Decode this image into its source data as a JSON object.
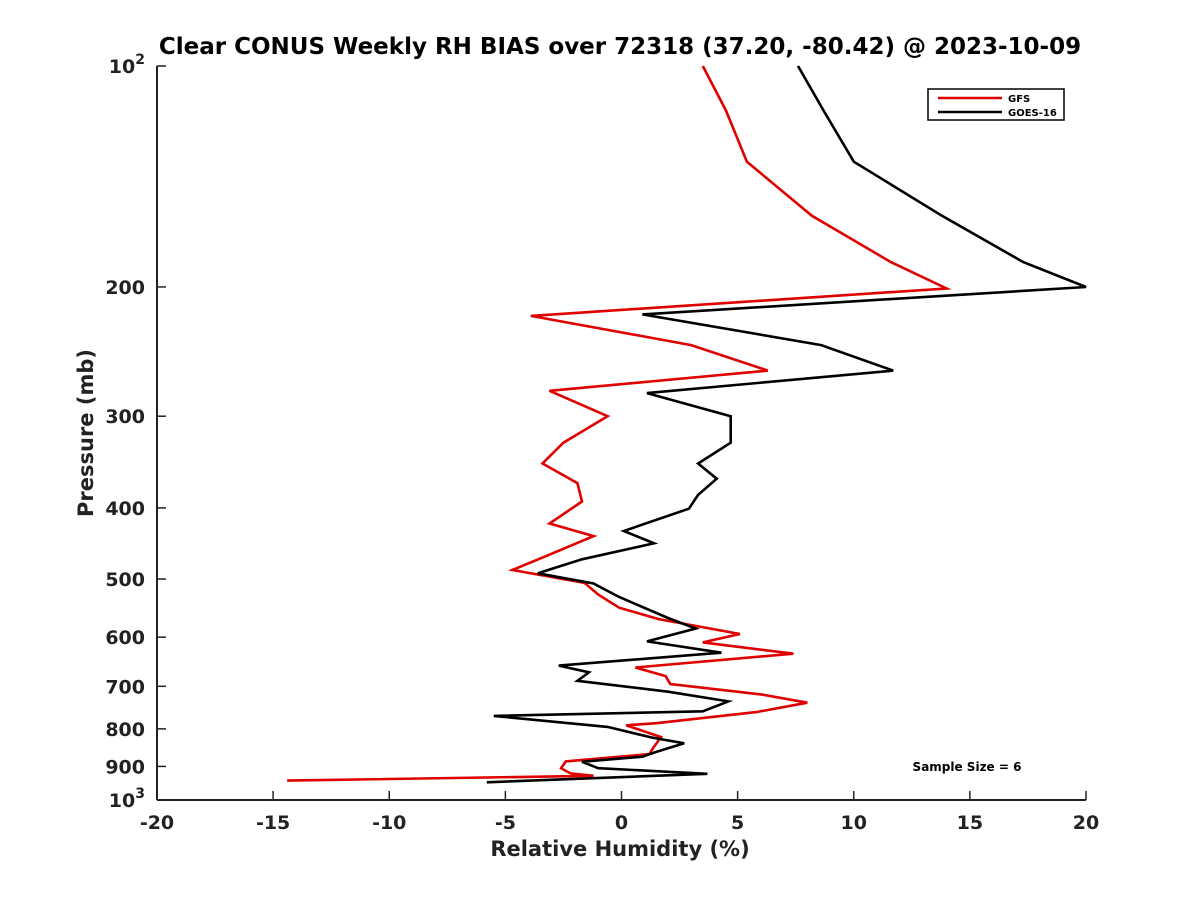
{
  "chart_data": {
    "type": "line",
    "title": "Clear CONUS Weekly RH BIAS over 72318 (37.20, -80.42) @ 2023-10-09",
    "xlabel": "Relative Humidity (%)",
    "ylabel": "Pressure (mb)",
    "xlim": [
      -20,
      20
    ],
    "ylim": [
      100,
      1000
    ],
    "y_scale": "log",
    "y_reversed": true,
    "x_ticks": [
      "-20",
      "-15",
      "-10",
      "-5",
      "0",
      "5",
      "10",
      "15",
      "20"
    ],
    "y_ticks": [
      {
        "value": 100,
        "label": "10",
        "sup": "2"
      },
      {
        "value": 200,
        "label": "200",
        "sup": ""
      },
      {
        "value": 300,
        "label": "300",
        "sup": ""
      },
      {
        "value": 400,
        "label": "400",
        "sup": ""
      },
      {
        "value": 500,
        "label": "500",
        "sup": ""
      },
      {
        "value": 600,
        "label": "600",
        "sup": ""
      },
      {
        "value": 700,
        "label": "700",
        "sup": ""
      },
      {
        "value": 800,
        "label": "800",
        "sup": ""
      },
      {
        "value": 900,
        "label": "900",
        "sup": ""
      },
      {
        "value": 1000,
        "label": "10",
        "sup": "3"
      }
    ],
    "legend_position": "top-right",
    "annotation": "Sample Size = 6",
    "series": [
      {
        "name": "GFS",
        "color": "#e00000",
        "points": [
          [
            3.5,
            100
          ],
          [
            4.5,
            115
          ],
          [
            5.4,
            135
          ],
          [
            8.2,
            160
          ],
          [
            11.6,
            185
          ],
          [
            14.0,
            201
          ],
          [
            -3.9,
            219
          ],
          [
            3.0,
            240
          ],
          [
            6.3,
            260
          ],
          [
            -3.1,
            277
          ],
          [
            -0.6,
            300
          ],
          [
            -2.5,
            326
          ],
          [
            -3.4,
            348
          ],
          [
            -1.9,
            370
          ],
          [
            -1.7,
            392
          ],
          [
            -3.1,
            420
          ],
          [
            -1.2,
            437
          ],
          [
            -3.3,
            466
          ],
          [
            -4.7,
            486
          ],
          [
            -1.6,
            506
          ],
          [
            -1.0,
            525
          ],
          [
            -0.1,
            547
          ],
          [
            1.6,
            567
          ],
          [
            5.1,
            594
          ],
          [
            3.5,
            610
          ],
          [
            7.4,
            632
          ],
          [
            0.6,
            660
          ],
          [
            1.9,
            678
          ],
          [
            2.1,
            695
          ],
          [
            6.0,
            718
          ],
          [
            8.0,
            737
          ],
          [
            5.8,
            759
          ],
          [
            1.5,
            786
          ],
          [
            0.2,
            791
          ],
          [
            1.7,
            821
          ],
          [
            1.4,
            846
          ],
          [
            1.2,
            866
          ],
          [
            -2.4,
            886
          ],
          [
            -2.6,
            905
          ],
          [
            -2.2,
            920
          ],
          [
            -1.2,
            927
          ],
          [
            -14.4,
            941
          ]
        ]
      },
      {
        "name": "GOES-16",
        "color": "#000000",
        "points": [
          [
            7.6,
            100
          ],
          [
            8.7,
            115
          ],
          [
            10.0,
            135
          ],
          [
            13.8,
            160
          ],
          [
            17.3,
            185
          ],
          [
            20.0,
            200
          ],
          [
            0.9,
            218
          ],
          [
            8.6,
            240
          ],
          [
            11.7,
            260
          ],
          [
            1.1,
            279
          ],
          [
            4.7,
            300
          ],
          [
            4.7,
            326
          ],
          [
            3.3,
            348
          ],
          [
            4.1,
            365
          ],
          [
            3.3,
            384
          ],
          [
            2.9,
            401
          ],
          [
            0.1,
            430
          ],
          [
            1.4,
            447
          ],
          [
            -1.7,
            470
          ],
          [
            -3.6,
            491
          ],
          [
            -1.2,
            507
          ],
          [
            -0.8,
            515
          ],
          [
            -0.1,
            529
          ],
          [
            2.0,
            565
          ],
          [
            3.2,
            584
          ],
          [
            1.1,
            608
          ],
          [
            4.3,
            630
          ],
          [
            -2.7,
            656
          ],
          [
            -1.4,
            670
          ],
          [
            -1.9,
            688
          ],
          [
            2.0,
            712
          ],
          [
            4.6,
            734
          ],
          [
            3.5,
            757
          ],
          [
            -5.5,
            768
          ],
          [
            -0.6,
            795
          ],
          [
            1.3,
            822
          ],
          [
            2.7,
            837
          ],
          [
            1.5,
            860
          ],
          [
            0.9,
            873
          ],
          [
            -1.7,
            887
          ],
          [
            -1.0,
            905
          ],
          [
            3.7,
            921
          ],
          [
            -5.8,
            946
          ]
        ]
      }
    ]
  }
}
